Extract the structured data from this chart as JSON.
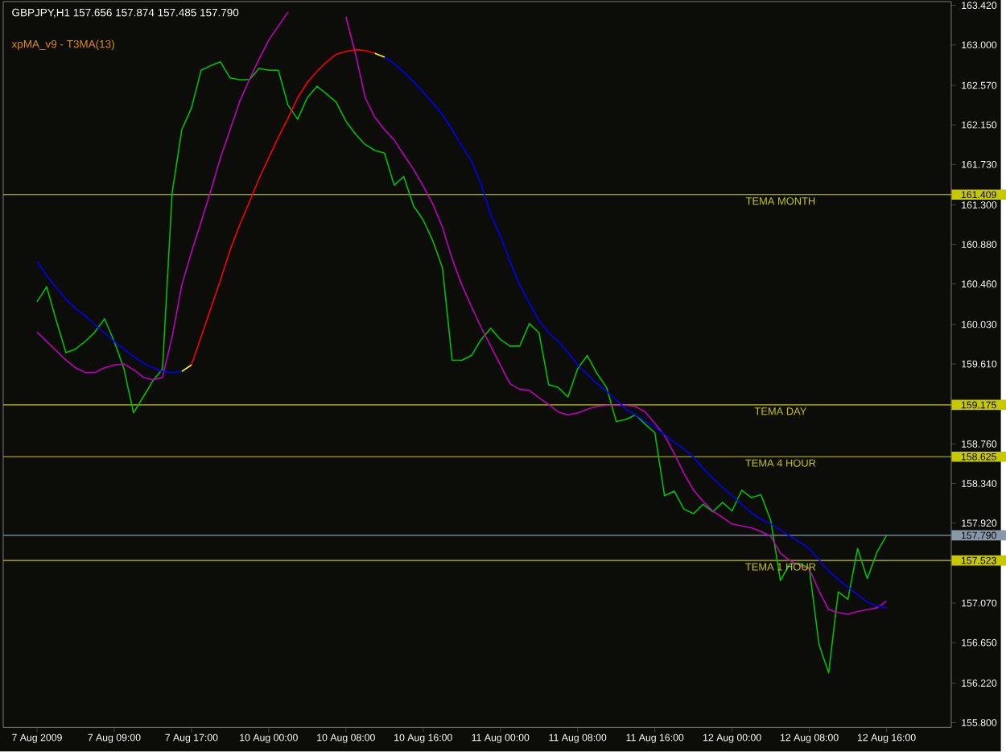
{
  "chart_data": {
    "type": "line",
    "title": "GBPJPY,H1  157.656 157.874 157.485 157.790",
    "subtitle": "xpMA_v9 - T3MA(13)",
    "categories": [
      "7 Aug 2009",
      null,
      null,
      null,
      null,
      null,
      null,
      null,
      "7 Aug 09:00",
      null,
      null,
      null,
      null,
      null,
      null,
      null,
      "7 Aug 17:00",
      null,
      null,
      null,
      null,
      null,
      null,
      null,
      "10 Aug 00:00",
      null,
      null,
      null,
      null,
      null,
      null,
      null,
      "10 Aug 08:00",
      null,
      null,
      null,
      null,
      null,
      null,
      null,
      "10 Aug 16:00",
      null,
      null,
      null,
      null,
      null,
      null,
      null,
      "11 Aug 00:00",
      null,
      null,
      null,
      null,
      null,
      null,
      null,
      "11 Aug 08:00",
      null,
      null,
      null,
      null,
      null,
      null,
      null,
      "11 Aug 16:00",
      null,
      null,
      null,
      null,
      null,
      null,
      null,
      "12 Aug 00:00",
      null,
      null,
      null,
      null,
      null,
      null,
      null,
      "12 Aug 08:00",
      null,
      null,
      null,
      null,
      null,
      null,
      null,
      "12 Aug 16:00",
      null,
      null,
      null,
      null,
      null,
      null
    ],
    "ylim": [
      155.75,
      163.46
    ],
    "yticks": [
      {
        "value": 163.42,
        "label": "163.420"
      },
      {
        "value": 163.0,
        "label": "163.000"
      },
      {
        "value": 162.57,
        "label": "162.570"
      },
      {
        "value": 162.15,
        "label": "162.150"
      },
      {
        "value": 161.73,
        "label": "161.730"
      },
      {
        "value": 161.409,
        "label": "161.409"
      },
      {
        "value": 161.3,
        "label": "161.300"
      },
      {
        "value": 160.88,
        "label": "160.880"
      },
      {
        "value": 160.46,
        "label": "160.460"
      },
      {
        "value": 160.03,
        "label": "160.030"
      },
      {
        "value": 159.61,
        "label": "159.610"
      },
      {
        "value": 159.175,
        "label": "159.175"
      },
      {
        "value": 158.76,
        "label": "158.760"
      },
      {
        "value": 158.625,
        "label": "158.625"
      },
      {
        "value": 158.34,
        "label": "158.340"
      },
      {
        "value": 157.92,
        "label": "157.920"
      },
      {
        "value": 157.79,
        "label": "157.790"
      },
      {
        "value": 157.523,
        "label": "157.523"
      },
      {
        "value": 157.07,
        "label": "157.070"
      },
      {
        "value": 156.65,
        "label": "156.650"
      },
      {
        "value": 156.22,
        "label": "156.220"
      },
      {
        "value": 155.8,
        "label": "155.800"
      }
    ],
    "grid": false,
    "marker": "none",
    "line_style": "solid",
    "series": [
      {
        "color": "#00c000",
        "values": [
          160.27,
          160.43,
          160.07,
          159.73,
          159.77,
          159.85,
          159.95,
          160.09,
          159.85,
          159.56,
          159.09,
          159.26,
          159.43,
          159.56,
          161.43,
          162.1,
          162.33,
          162.73,
          162.78,
          162.82,
          162.65,
          162.63,
          162.63,
          162.75,
          162.73,
          162.73,
          162.36,
          162.21,
          162.44,
          162.56,
          162.48,
          162.39,
          162.19,
          162.05,
          161.94,
          161.88,
          161.85,
          161.51,
          161.6,
          161.29,
          161.14,
          160.92,
          160.63,
          159.65,
          159.65,
          159.7,
          159.87,
          159.99,
          159.87,
          159.8,
          159.8,
          160.04,
          159.94,
          159.39,
          159.36,
          159.26,
          159.56,
          159.7,
          159.51,
          159.36,
          159.0,
          159.02,
          159.07,
          158.97,
          158.88,
          158.21,
          158.26,
          158.07,
          158.02,
          158.12,
          158.04,
          158.14,
          158.05,
          158.27,
          158.19,
          158.22,
          157.95,
          157.31,
          157.49,
          157.49,
          157.44,
          156.63,
          156.33,
          157.19,
          157.11,
          157.65,
          157.33,
          157.61,
          157.79,
          null,
          null,
          null,
          null,
          null,
          null
        ]
      },
      {
        "color": "#c000c0",
        "values": [
          159.95,
          159.85,
          159.75,
          159.65,
          159.57,
          159.52,
          159.52,
          159.57,
          159.6,
          159.61,
          159.55,
          159.47,
          159.44,
          159.47,
          159.9,
          160.45,
          160.8,
          161.12,
          161.45,
          161.8,
          162.1,
          162.4,
          162.63,
          162.85,
          163.05,
          163.2,
          163.35,
          null,
          null,
          null,
          null,
          null,
          163.3,
          162.9,
          162.44,
          162.23,
          162.1,
          161.99,
          161.83,
          161.68,
          161.5,
          161.31,
          161.06,
          160.73,
          160.45,
          160.22,
          160.0,
          159.8,
          159.6,
          159.4,
          159.34,
          159.33,
          159.25,
          159.18,
          159.1,
          159.07,
          159.09,
          159.13,
          159.16,
          159.17,
          159.17,
          159.17,
          159.16,
          159.1,
          158.98,
          158.85,
          158.66,
          158.45,
          158.27,
          158.15,
          158.05,
          157.98,
          157.91,
          157.89,
          157.87,
          157.83,
          157.78,
          157.6,
          157.52,
          157.47,
          157.43,
          157.2,
          157.0,
          156.97,
          156.95,
          156.98,
          157.0,
          157.02,
          157.09,
          null,
          null,
          null,
          null,
          null,
          null
        ]
      },
      {
        "color": "#0000ff",
        "values": [
          160.7,
          160.55,
          160.42,
          160.3,
          160.2,
          160.12,
          160.03,
          159.94,
          159.85,
          159.77,
          159.69,
          159.62,
          159.57,
          159.53,
          159.52,
          159.53,
          null,
          null,
          null,
          null,
          null,
          null,
          null,
          null,
          null,
          null,
          null,
          null,
          null,
          null,
          null,
          null,
          null,
          null,
          null,
          null,
          162.87,
          162.8,
          162.71,
          162.61,
          162.5,
          162.38,
          162.26,
          162.1,
          161.93,
          161.77,
          161.52,
          161.2,
          160.97,
          160.7,
          160.45,
          160.26,
          160.07,
          159.94,
          159.85,
          159.73,
          159.6,
          159.5,
          159.4,
          159.32,
          159.23,
          159.13,
          159.07,
          159.0,
          158.94,
          158.86,
          158.78,
          158.71,
          158.62,
          158.5,
          158.4,
          158.3,
          158.21,
          158.12,
          158.03,
          157.96,
          157.91,
          157.85,
          157.78,
          157.72,
          157.65,
          157.53,
          157.41,
          157.32,
          157.24,
          157.16,
          157.08,
          157.04,
          157.02,
          null,
          null,
          null,
          null,
          null,
          null
        ]
      },
      {
        "color": "#ff0000",
        "values": [
          null,
          null,
          null,
          null,
          null,
          null,
          null,
          null,
          null,
          null,
          null,
          null,
          null,
          null,
          null,
          null,
          159.6,
          159.9,
          160.2,
          160.5,
          160.82,
          161.09,
          161.33,
          161.58,
          161.8,
          162.02,
          162.22,
          162.44,
          162.6,
          162.72,
          162.82,
          162.9,
          162.93,
          162.95,
          162.94,
          162.91,
          null,
          null,
          null,
          null,
          null,
          null,
          null,
          null,
          null,
          null,
          null,
          null,
          null,
          null,
          null,
          null,
          null,
          null,
          null,
          null,
          null,
          null,
          null,
          null,
          null,
          null,
          null,
          null,
          null,
          null,
          null,
          null,
          null,
          null,
          null,
          null,
          null,
          null,
          null,
          null,
          null,
          null,
          null,
          null,
          null,
          null,
          null,
          null,
          null,
          null,
          null,
          null,
          null,
          null,
          null,
          null,
          null,
          null,
          null
        ]
      },
      {
        "color": "#ffff00",
        "values": [
          null,
          null,
          null,
          null,
          null,
          null,
          null,
          null,
          null,
          null,
          null,
          null,
          null,
          null,
          null,
          159.53,
          159.6,
          null,
          null,
          null,
          null,
          null,
          null,
          null,
          null,
          null,
          null,
          null,
          null,
          null,
          null,
          null,
          null,
          null,
          null,
          162.91,
          162.87,
          null,
          null,
          null,
          null,
          null,
          null,
          null,
          null,
          null,
          null,
          null,
          null,
          null,
          null,
          null,
          null,
          null,
          null,
          null,
          null,
          null,
          null,
          null,
          null,
          null,
          null,
          null,
          null,
          null,
          null,
          null,
          null,
          null,
          null,
          null,
          null,
          null,
          null,
          null,
          null,
          null,
          null,
          null,
          null,
          null,
          null,
          null,
          null,
          null,
          null,
          null,
          null,
          null,
          null,
          null,
          null,
          null,
          null
        ]
      }
    ],
    "ref_lines": [
      {
        "axis": "y",
        "value": 161.409,
        "label": "TEMA MONTH",
        "color": "#c8c800"
      },
      {
        "axis": "y",
        "value": 159.175,
        "label": "TEMA DAY",
        "color": "#c8c800"
      },
      {
        "axis": "y",
        "value": 158.625,
        "label": "TEMA 4 HOUR",
        "color": "#c8c800"
      },
      {
        "axis": "y",
        "value": 157.79,
        "label": null,
        "color": "#8898a8"
      },
      {
        "axis": "y",
        "value": 157.523,
        "label": "TEMA 1 HOUR",
        "color": "#c8c800"
      }
    ]
  }
}
